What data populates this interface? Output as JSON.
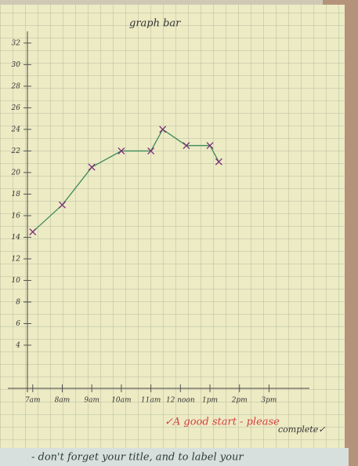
{
  "chart_data": {
    "type": "line",
    "title": "graph bar",
    "x": [
      7,
      8,
      9,
      10,
      11,
      11.4,
      12.2,
      13,
      13.3
    ],
    "series": [
      {
        "color": "#3f8a5a",
        "marker_color": "#7a2a78",
        "values": [
          14.5,
          17,
          20.5,
          22,
          22,
          24,
          22.5,
          22.5,
          21
        ]
      }
    ],
    "xlim": [
      6.9,
      16.5
    ],
    "xticks": [
      {
        "value": 7,
        "label": "7am"
      },
      {
        "value": 8,
        "label": "8am"
      },
      {
        "value": 9,
        "label": "9am"
      },
      {
        "value": 10,
        "label": "10am"
      },
      {
        "value": 11,
        "label": "11am"
      },
      {
        "value": 12,
        "label": "12 noon"
      },
      {
        "value": 13,
        "label": "1pm"
      },
      {
        "value": 14,
        "label": "2pm"
      },
      {
        "value": 15,
        "label": "3pm"
      }
    ],
    "ylim": [
      0,
      32.5
    ],
    "yticks": [
      4,
      6,
      8,
      10,
      12,
      14,
      16,
      18,
      20,
      22,
      24,
      26,
      28,
      30,
      32
    ],
    "annotations": [
      "✓A good start - please",
      "complete✓",
      "- don't forget your title, and to label your"
    ]
  }
}
